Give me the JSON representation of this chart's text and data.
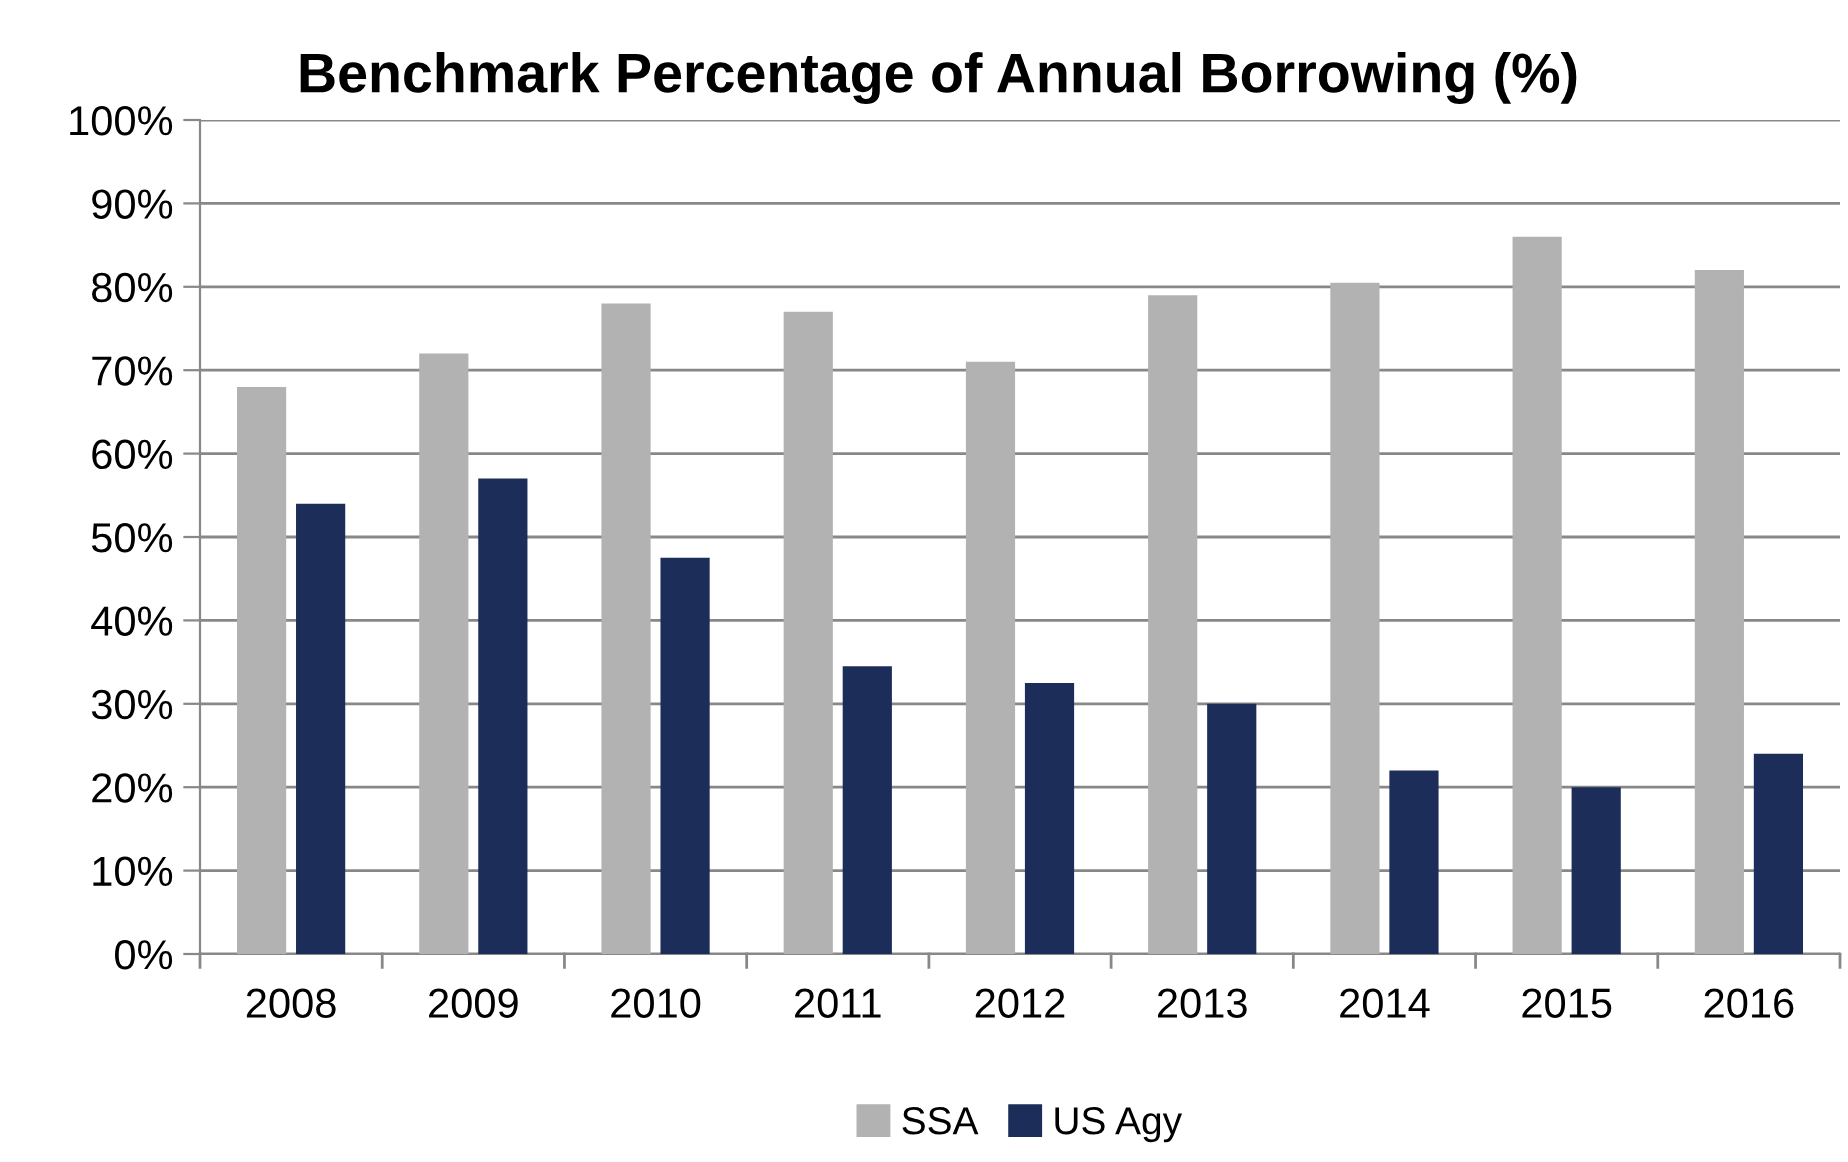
{
  "chart_data": {
    "type": "bar",
    "title": "Benchmark Percentage of Annual Borrowing (%)",
    "categories": [
      "2008",
      "2009",
      "2010",
      "2011",
      "2012",
      "2013",
      "2014",
      "2015",
      "2016"
    ],
    "series": [
      {
        "name": "SSA",
        "color": "#b1b2b1",
        "values": [
          68,
          72,
          78,
          77,
          71,
          79,
          80.5,
          86,
          82
        ]
      },
      {
        "name": "US Agy",
        "color": "#1b2d58",
        "values": [
          54,
          57,
          47.5,
          34.5,
          32.5,
          30,
          22,
          20,
          24
        ]
      }
    ],
    "ylim": [
      0,
      100
    ],
    "yticks": [
      {
        "value": 0,
        "label": "0%"
      },
      {
        "value": 10,
        "label": "10%"
      },
      {
        "value": 20,
        "label": "20%"
      },
      {
        "value": 30,
        "label": "30%"
      },
      {
        "value": 40,
        "label": "40%"
      },
      {
        "value": 50,
        "label": "50%"
      },
      {
        "value": 60,
        "label": "60%"
      },
      {
        "value": 70,
        "label": "70%"
      },
      {
        "value": 80,
        "label": "80%"
      },
      {
        "value": 90,
        "label": "90%"
      },
      {
        "value": 100,
        "label": "100%"
      }
    ],
    "grid": "y",
    "legend": "bottom"
  }
}
